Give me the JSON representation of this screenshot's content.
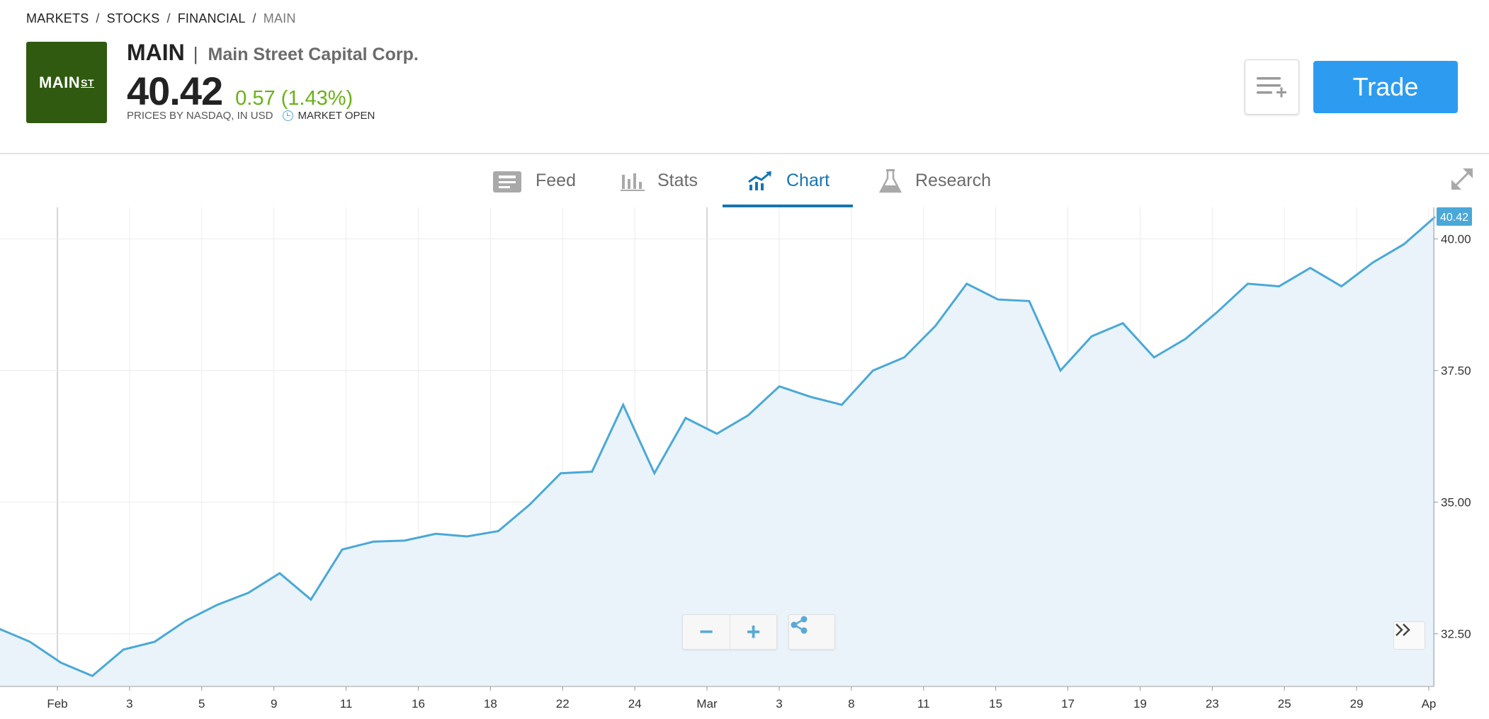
{
  "breadcrumb": [
    "MARKETS",
    "STOCKS",
    "FINANCIAL",
    "MAIN"
  ],
  "instrument": {
    "logo_text": "MAIN",
    "logo_suffix": "ST",
    "symbol": "MAIN",
    "company": "Main Street Capital Corp.",
    "price": "40.42",
    "change": "0.57 (1.43%)",
    "price_source": "PRICES BY NASDAQ, IN USD",
    "market_status": "MARKET OPEN"
  },
  "actions": {
    "watchlist_icon": "add-to-watchlist-icon",
    "trade_label": "Trade"
  },
  "tabs": [
    {
      "label": "Feed",
      "icon": "feed-icon",
      "active": false
    },
    {
      "label": "Stats",
      "icon": "stats-icon",
      "active": false
    },
    {
      "label": "Chart",
      "icon": "chart-icon",
      "active": true
    },
    {
      "label": "Research",
      "icon": "research-icon",
      "active": false
    }
  ],
  "colors": {
    "accent": "#1675b2",
    "trade": "#2d9cf0",
    "positive": "#6bb117",
    "line": "#4aa8d8",
    "area": "#eaf3fa",
    "logo_bg": "#2f5a10"
  },
  "chart_data": {
    "type": "area",
    "current_price_label": "40.42",
    "ylim": [
      31.5,
      40.6
    ],
    "yticks": [
      32.5,
      35.0,
      37.5,
      40.0
    ],
    "ytick_labels": [
      "32.50",
      "35.00",
      "37.50",
      "40.00"
    ],
    "x_tick_labels": [
      "Feb",
      "3",
      "5",
      "9",
      "11",
      "16",
      "18",
      "22",
      "24",
      "Mar",
      "3",
      "8",
      "11",
      "15",
      "17",
      "19",
      "23",
      "25",
      "29",
      "Ap"
    ],
    "grid": true,
    "series": [
      {
        "x": [
          "Jan 28",
          "Jan 29",
          "Jan 30",
          "Jan 31",
          "Feb 1",
          "Feb 2",
          "Feb 3",
          "Feb 4",
          "Feb 5",
          "Feb 8",
          "Feb 9",
          "Feb 10",
          "Feb 11",
          "Feb 12",
          "Feb 16",
          "Feb 17",
          "Feb 18",
          "Feb 19",
          "Feb 22",
          "Feb 23",
          "Feb 24",
          "Feb 25",
          "Feb 26",
          "Mar 1",
          "Mar 2",
          "Mar 3",
          "Mar 4",
          "Mar 5",
          "Mar 8",
          "Mar 9",
          "Mar 10",
          "Mar 11",
          "Mar 12",
          "Mar 15",
          "Mar 16",
          "Mar 17",
          "Mar 18",
          "Mar 19",
          "Mar 22",
          "Mar 23",
          "Mar 24",
          "Mar 25",
          "Mar 26",
          "Mar 29",
          "Mar 30",
          "Mar 31",
          "Apr 1"
        ],
        "values": [
          32.6,
          32.35,
          31.95,
          31.7,
          32.2,
          32.35,
          32.75,
          33.05,
          33.28,
          33.65,
          33.15,
          34.1,
          34.25,
          34.27,
          34.4,
          34.35,
          34.45,
          34.95,
          35.55,
          35.58,
          36.85,
          35.55,
          36.6,
          36.3,
          36.65,
          37.2,
          37.0,
          36.85,
          37.5,
          37.75,
          38.35,
          39.15,
          38.85,
          38.82,
          37.5,
          38.15,
          38.4,
          37.75,
          38.1,
          38.6,
          39.15,
          39.1,
          39.45,
          39.1,
          39.55,
          39.9,
          40.42
        ]
      }
    ]
  }
}
